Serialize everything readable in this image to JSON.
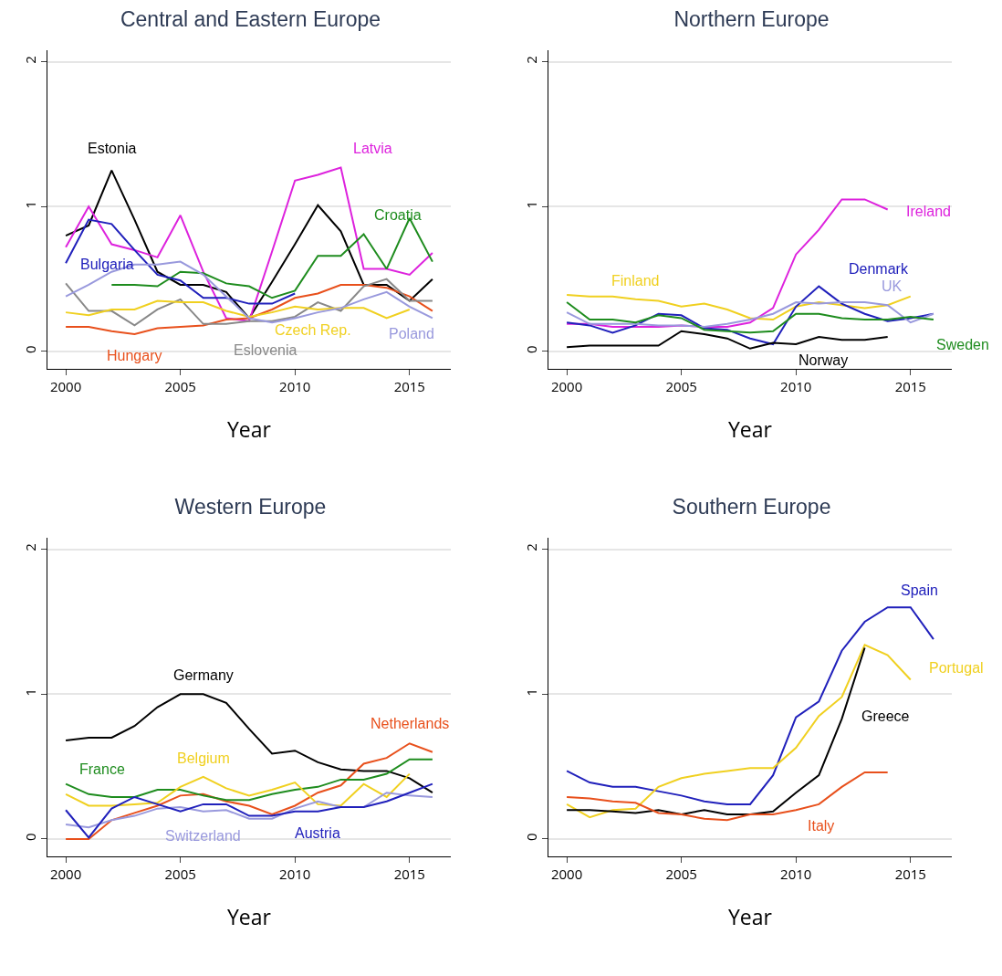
{
  "chart_data": [
    {
      "type": "line",
      "title": "Central and Eastern Europe",
      "xlabel": "Year",
      "x": [
        2000,
        2001,
        2002,
        2003,
        2004,
        2005,
        2006,
        2007,
        2008,
        2009,
        2010,
        2011,
        2012,
        2013,
        2014,
        2015,
        2016
      ],
      "xlim": [
        1999.2,
        2016.8
      ],
      "xticks": [
        2000,
        2005,
        2010,
        2015
      ],
      "ylim": [
        -0.12,
        2.08
      ],
      "yticks": [
        0,
        1,
        2
      ],
      "grid": "y",
      "series": [
        {
          "name": "Estonia",
          "color": "#000000",
          "values": [
            0.8,
            0.87,
            1.25,
            0.91,
            0.55,
            0.46,
            0.46,
            0.41,
            0.23,
            0.48,
            0.74,
            1.01,
            0.83,
            0.46,
            0.46,
            0.35,
            0.5
          ]
        },
        {
          "name": "Latvia",
          "color": "#dd22dd",
          "values": [
            0.72,
            1.0,
            0.74,
            0.7,
            0.65,
            0.94,
            0.55,
            0.23,
            0.21,
            0.69,
            1.18,
            1.22,
            1.27,
            0.57,
            0.57,
            0.53,
            0.68
          ]
        },
        {
          "name": "Croatia",
          "color": "#1e8c1e",
          "values": [
            null,
            null,
            0.46,
            0.46,
            0.45,
            0.55,
            0.54,
            0.47,
            0.45,
            0.37,
            0.42,
            0.66,
            0.66,
            0.81,
            0.57,
            0.92,
            0.62
          ]
        },
        {
          "name": "Bulgaria",
          "color": "#2020bb",
          "values": [
            0.61,
            0.91,
            0.88,
            0.7,
            0.53,
            0.49,
            0.37,
            0.37,
            0.33,
            0.33,
            0.4,
            null,
            null,
            null,
            null,
            null,
            null
          ]
        },
        {
          "name": "Hungary",
          "color": "#e8501c",
          "values": [
            0.17,
            0.17,
            0.14,
            0.12,
            0.16,
            0.17,
            0.18,
            0.22,
            0.23,
            0.29,
            0.37,
            0.4,
            0.46,
            0.46,
            0.44,
            0.38,
            0.28
          ]
        },
        {
          "name": "Eslovenia",
          "color": "#888888",
          "values": [
            0.47,
            0.28,
            0.28,
            0.18,
            0.29,
            0.36,
            0.19,
            0.19,
            0.21,
            0.21,
            0.24,
            0.34,
            0.28,
            0.45,
            0.5,
            0.35,
            0.35
          ]
        },
        {
          "name": "Czech Rep.",
          "color": "#f0d020",
          "values": [
            0.27,
            0.25,
            0.29,
            0.29,
            0.35,
            0.34,
            0.34,
            0.28,
            0.24,
            0.27,
            0.31,
            0.29,
            0.3,
            0.3,
            0.23,
            0.29,
            null
          ]
        },
        {
          "name": "Poland",
          "color": "#9999dd",
          "values": [
            0.38,
            0.46,
            0.55,
            0.6,
            0.6,
            0.62,
            0.53,
            0.38,
            0.23,
            0.2,
            0.23,
            0.27,
            0.3,
            0.36,
            0.41,
            0.31,
            0.23
          ]
        }
      ]
    },
    {
      "type": "line",
      "title": "Northern Europe",
      "xlabel": "Year",
      "x": [
        2000,
        2001,
        2002,
        2003,
        2004,
        2005,
        2006,
        2007,
        2008,
        2009,
        2010,
        2011,
        2012,
        2013,
        2014,
        2015,
        2016
      ],
      "xlim": [
        1999.2,
        2016.8
      ],
      "xticks": [
        2000,
        2005,
        2010,
        2015
      ],
      "ylim": [
        -0.12,
        2.08
      ],
      "yticks": [
        0,
        1,
        2
      ],
      "grid": "y",
      "series": [
        {
          "name": "Finland",
          "color": "#f0d020",
          "values": [
            0.39,
            0.38,
            0.38,
            0.36,
            0.35,
            0.31,
            0.33,
            0.29,
            0.23,
            0.22,
            0.31,
            0.34,
            0.32,
            0.3,
            0.32,
            0.38,
            null
          ]
        },
        {
          "name": "Ireland",
          "color": "#dd22dd",
          "values": [
            0.19,
            0.19,
            0.17,
            0.17,
            0.17,
            0.18,
            0.17,
            0.17,
            0.2,
            0.3,
            0.67,
            0.84,
            1.05,
            1.05,
            0.98,
            null,
            null
          ]
        },
        {
          "name": "Denmark",
          "color": "#2020bb",
          "values": [
            0.2,
            0.18,
            0.13,
            0.18,
            0.26,
            0.25,
            0.16,
            0.15,
            0.09,
            0.05,
            0.31,
            0.45,
            0.33,
            0.26,
            0.21,
            0.23,
            0.26
          ]
        },
        {
          "name": "UK",
          "color": "#9999dd",
          "values": [
            0.27,
            0.19,
            0.19,
            0.19,
            0.18,
            0.18,
            0.17,
            0.19,
            0.22,
            0.26,
            0.34,
            0.33,
            0.34,
            0.34,
            0.32,
            0.2,
            0.26
          ]
        },
        {
          "name": "Sweden",
          "color": "#1e8c1e",
          "values": [
            0.34,
            0.22,
            0.22,
            0.2,
            0.25,
            0.23,
            0.15,
            0.14,
            0.13,
            0.14,
            0.26,
            0.26,
            0.23,
            0.22,
            0.22,
            0.24,
            0.22
          ]
        },
        {
          "name": "Norway",
          "color": "#000000",
          "values": [
            0.03,
            0.04,
            0.04,
            0.04,
            0.04,
            0.14,
            0.12,
            0.09,
            0.02,
            0.06,
            0.05,
            0.1,
            0.08,
            0.08,
            0.1,
            null,
            null
          ]
        }
      ]
    },
    {
      "type": "line",
      "title": "Western Europe",
      "xlabel": "Year",
      "x": [
        2000,
        2001,
        2002,
        2003,
        2004,
        2005,
        2006,
        2007,
        2008,
        2009,
        2010,
        2011,
        2012,
        2013,
        2014,
        2015,
        2016
      ],
      "xlim": [
        1999.2,
        2016.8
      ],
      "xticks": [
        2000,
        2005,
        2010,
        2015
      ],
      "ylim": [
        -0.12,
        2.08
      ],
      "yticks": [
        0,
        1,
        2
      ],
      "grid": "y",
      "series": [
        {
          "name": "Germany",
          "color": "#000000",
          "values": [
            0.68,
            0.7,
            0.7,
            0.78,
            0.91,
            1.0,
            1.0,
            0.94,
            0.76,
            0.59,
            0.61,
            0.53,
            0.48,
            0.47,
            0.47,
            0.42,
            0.32
          ]
        },
        {
          "name": "Netherlands",
          "color": "#e8501c",
          "values": [
            0.0,
            0.0,
            0.13,
            0.18,
            0.23,
            0.3,
            0.31,
            0.26,
            0.23,
            0.17,
            0.23,
            0.32,
            0.37,
            0.52,
            0.56,
            0.66,
            0.6
          ]
        },
        {
          "name": "France",
          "color": "#1e8c1e",
          "values": [
            0.38,
            0.31,
            0.29,
            0.29,
            0.34,
            0.34,
            0.3,
            0.27,
            0.27,
            0.31,
            0.34,
            0.36,
            0.41,
            0.41,
            0.45,
            0.55,
            0.55
          ]
        },
        {
          "name": "Belgium",
          "color": "#f0d020",
          "values": [
            0.31,
            0.23,
            0.23,
            0.24,
            0.25,
            0.36,
            0.43,
            0.35,
            0.3,
            0.34,
            0.39,
            0.24,
            0.23,
            0.38,
            0.29,
            0.45,
            null
          ]
        },
        {
          "name": "Switzerland",
          "color": "#9999dd",
          "values": [
            0.1,
            0.08,
            0.13,
            0.16,
            0.21,
            0.22,
            0.19,
            0.2,
            0.14,
            0.14,
            0.21,
            0.26,
            0.22,
            0.22,
            0.32,
            0.3,
            0.29
          ]
        },
        {
          "name": "Austria",
          "color": "#2020bb",
          "values": [
            0.2,
            0.01,
            0.21,
            0.29,
            0.24,
            0.19,
            0.24,
            0.24,
            0.16,
            0.16,
            0.19,
            0.19,
            0.22,
            0.22,
            0.26,
            0.32,
            0.38
          ]
        }
      ]
    },
    {
      "type": "line",
      "title": "Southern Europe",
      "xlabel": "Year",
      "x": [
        2000,
        2001,
        2002,
        2003,
        2004,
        2005,
        2006,
        2007,
        2008,
        2009,
        2010,
        2011,
        2012,
        2013,
        2014,
        2015,
        2016
      ],
      "xlim": [
        1999.2,
        2016.8
      ],
      "xticks": [
        2000,
        2005,
        2010,
        2015
      ],
      "ylim": [
        -0.12,
        2.08
      ],
      "yticks": [
        0,
        1,
        2
      ],
      "grid": "y",
      "series": [
        {
          "name": "Spain",
          "color": "#2020bb",
          "values": [
            0.47,
            0.39,
            0.36,
            0.36,
            0.33,
            0.3,
            0.26,
            0.24,
            0.24,
            0.44,
            0.84,
            0.95,
            1.3,
            1.5,
            1.6,
            1.6,
            1.38
          ]
        },
        {
          "name": "Portugal",
          "color": "#f0d020",
          "values": [
            0.24,
            0.15,
            0.2,
            0.21,
            0.36,
            0.42,
            0.45,
            0.47,
            0.49,
            0.49,
            0.63,
            0.85,
            0.98,
            1.34,
            1.27,
            1.1,
            null
          ]
        },
        {
          "name": "Greece",
          "color": "#000000",
          "values": [
            0.2,
            0.2,
            0.19,
            0.18,
            0.2,
            0.17,
            0.2,
            0.17,
            0.17,
            0.19,
            0.32,
            0.44,
            0.83,
            1.32,
            null,
            null,
            null
          ]
        },
        {
          "name": "Italy",
          "color": "#e8501c",
          "values": [
            0.29,
            0.28,
            0.26,
            0.25,
            0.18,
            0.17,
            0.14,
            0.13,
            0.17,
            0.17,
            0.2,
            0.24,
            0.36,
            0.46,
            0.46,
            null,
            null
          ]
        }
      ]
    }
  ]
}
